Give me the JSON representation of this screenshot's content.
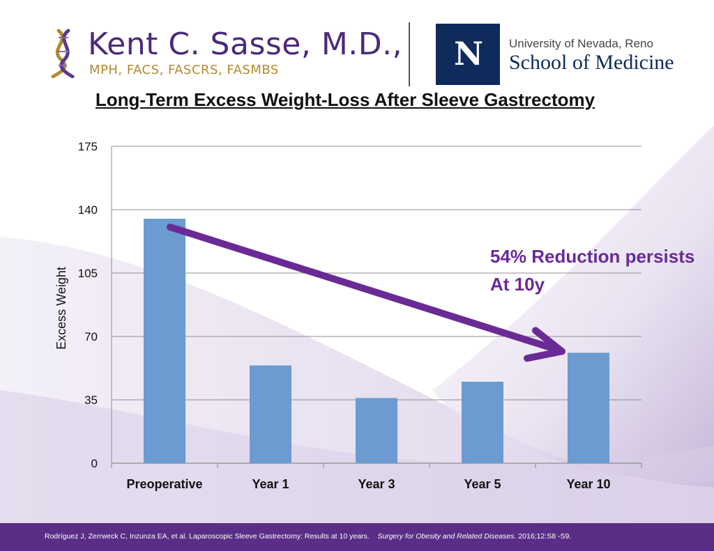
{
  "header": {
    "doctor_name": "Kent C. Sasse, M.D.,",
    "doctor_credentials": "MPH, FACS, FASCRS, FASMBS",
    "university_logo_letter": "N",
    "university_name": "University of Nevada, Reno",
    "school_name": "School of Medicine"
  },
  "slide_title": "Long-Term Excess Weight-Loss After Sleeve Gastrectomy",
  "annotation": {
    "line1": "54% Reduction persists",
    "line2": "At 10y",
    "color": "#6a2a96"
  },
  "chart_data": {
    "type": "bar",
    "title": "Long-Term Excess Weight-Loss After Sleeve Gastrectomy",
    "xlabel": "",
    "ylabel": "Excess Weight",
    "ylim": [
      0,
      175
    ],
    "yticks": [
      0,
      35,
      70,
      105,
      140,
      175
    ],
    "grid": true,
    "categories": [
      "Preoperative",
      "Year 1",
      "Year 3",
      "Year 5",
      "Year 10"
    ],
    "values": [
      135,
      54,
      36,
      45,
      61
    ],
    "bar_color": "#6b9bd1",
    "arrow_color": "#6a2a96"
  },
  "footer": {
    "citation": "Rodríguez J, Zerrweck C, Inzunza EA, et al. Laparoscopic Sleeve Gastrectomy: Results at 10 years.",
    "journal": "Surgery for Obesity and Related Diseases",
    "details": ". 2016;12:S8 -S9."
  }
}
